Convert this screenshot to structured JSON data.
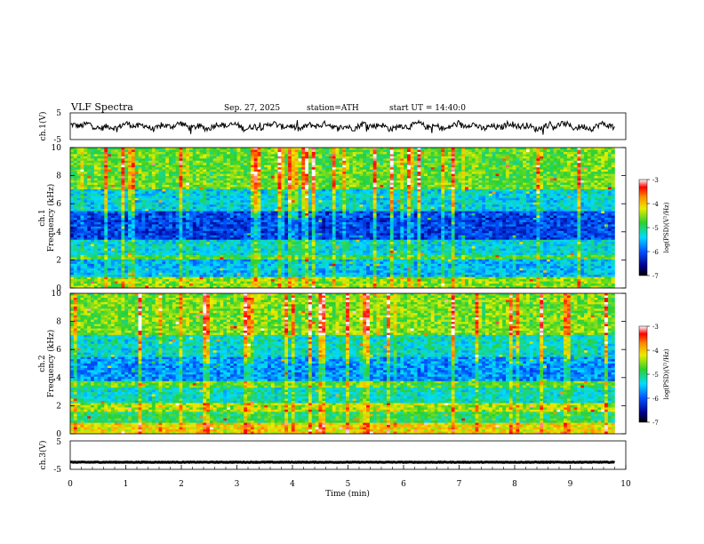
{
  "header": {
    "title": "VLF Spectra",
    "date": "Sep. 27, 2025",
    "station": "station=ATH",
    "start_ut": "start UT =  14:40:0"
  },
  "chart_data": [
    {
      "type": "line",
      "panel": "ch1-waveform",
      "ylabel": "ch.1(V)",
      "ylim": [
        -5,
        5
      ],
      "yticks": [
        5,
        -5
      ],
      "xlim": [
        0,
        10
      ],
      "x_data_extent": [
        0,
        9.8
      ],
      "style": "noisy waveform, mean near 0 V, amplitude roughly ±2.5 V",
      "line_color": "#000000"
    },
    {
      "type": "heatmap",
      "panel": "ch1-spectrogram",
      "ylabel_lines": [
        "ch.1",
        "Frequency  (kHz)"
      ],
      "ylim": [
        0,
        10
      ],
      "yticks": [
        0,
        2,
        4,
        6,
        8,
        10
      ],
      "xlim": [
        0,
        10
      ],
      "x_data_extent": [
        0,
        9.8
      ],
      "colorbar": {
        "label": "log(PSD)(V²/Hz)",
        "range": [
          -7,
          -3
        ],
        "ticks": [
          -3,
          -4,
          -5,
          -6,
          -7
        ]
      },
      "bands": [
        {
          "f_kHz": [
            0,
            0.8
          ],
          "log_psd": -4.6
        },
        {
          "f_kHz": [
            0.8,
            2.0
          ],
          "log_psd": -5.6
        },
        {
          "f_kHz": [
            2.0,
            2.3
          ],
          "log_psd": -4.9
        },
        {
          "f_kHz": [
            2.3,
            3.5
          ],
          "log_psd": -5.4
        },
        {
          "f_kHz": [
            3.5,
            5.5
          ],
          "log_psd": -6.2
        },
        {
          "f_kHz": [
            5.5,
            7.0
          ],
          "log_psd": -5.5
        },
        {
          "f_kHz": [
            7.0,
            10.0
          ],
          "log_psd": -4.8
        }
      ]
    },
    {
      "type": "heatmap",
      "panel": "ch2-spectrogram",
      "ylabel_lines": [
        "ch.2",
        "Frequency  (kHz)"
      ],
      "ylim": [
        0,
        10
      ],
      "yticks": [
        0,
        2,
        4,
        6,
        8,
        10
      ],
      "xlim": [
        0,
        10
      ],
      "x_data_extent": [
        0,
        9.8
      ],
      "colorbar": {
        "label": "log(PSD)(V²/Hz)",
        "range": [
          -7,
          -3
        ],
        "ticks": [
          -3,
          -4,
          -5,
          -6,
          -7
        ]
      },
      "bands": [
        {
          "f_kHz": [
            0,
            0.8
          ],
          "log_psd": -4.2
        },
        {
          "f_kHz": [
            0.8,
            1.6
          ],
          "log_psd": -5.0
        },
        {
          "f_kHz": [
            1.6,
            2.2
          ],
          "log_psd": -4.5
        },
        {
          "f_kHz": [
            2.2,
            3.3
          ],
          "log_psd": -5.3
        },
        {
          "f_kHz": [
            3.3,
            3.8
          ],
          "log_psd": -4.8
        },
        {
          "f_kHz": [
            3.8,
            5.5
          ],
          "log_psd": -5.8
        },
        {
          "f_kHz": [
            5.5,
            7.0
          ],
          "log_psd": -5.4
        },
        {
          "f_kHz": [
            7.0,
            10.0
          ],
          "log_psd": -4.7
        }
      ]
    },
    {
      "type": "line",
      "panel": "ch3-waveform",
      "ylabel": "ch.3(V)",
      "ylim": [
        -5,
        5
      ],
      "yticks": [
        5,
        -5
      ],
      "xlim": [
        0,
        10
      ],
      "x_data_extent": [
        0,
        9.8
      ],
      "xlabel": "Time  (min)",
      "xticks": [
        0,
        1,
        2,
        3,
        4,
        5,
        6,
        7,
        8,
        9,
        10
      ],
      "style": "nearly flat thick trace near -2.5 V",
      "level_V": -2.5,
      "line_color": "#000000"
    }
  ]
}
